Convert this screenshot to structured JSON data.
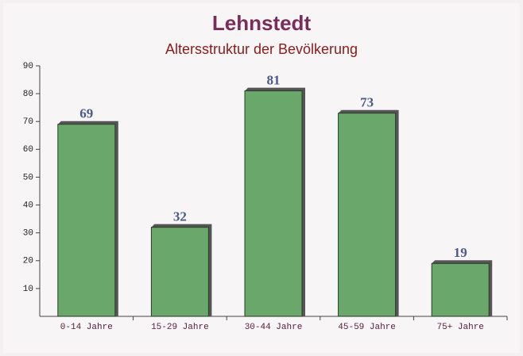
{
  "chart_data": {
    "type": "bar",
    "title": "Lehnstedt",
    "subtitle": "Altersstruktur der Bevölkerung",
    "categories": [
      "0-14 Jahre",
      "15-29 Jahre",
      "30-44 Jahre",
      "45-59 Jahre",
      "75+ Jahre"
    ],
    "values": [
      69,
      32,
      81,
      73,
      19
    ],
    "color": "#6aa76a",
    "ylim": [
      0,
      90
    ],
    "yticks": [
      10,
      20,
      30,
      40,
      50,
      60,
      70,
      80,
      90
    ],
    "grid": false
  }
}
